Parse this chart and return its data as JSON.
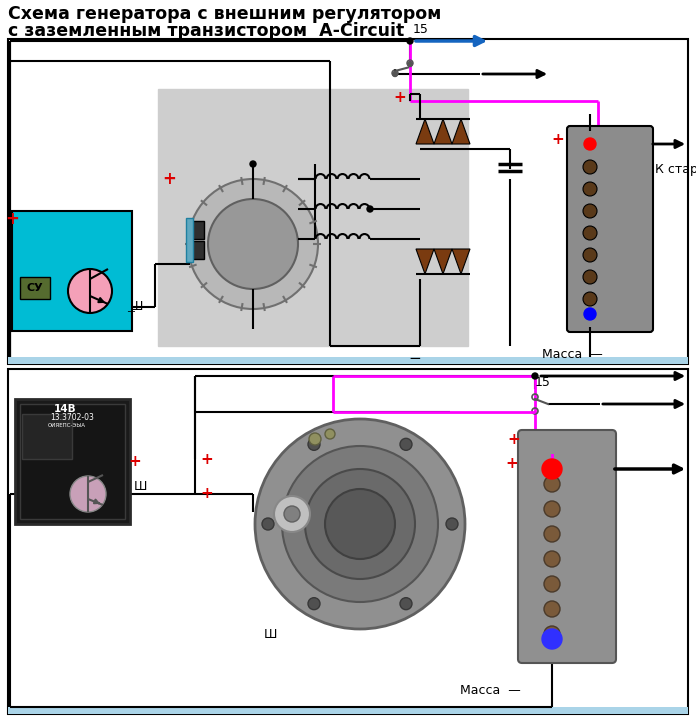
{
  "title_line1": "Схема генератора с внешним регулятором",
  "title_line2": "с заземленным транзистором  A-Circuit",
  "title_fontsize": 12.5,
  "bg_color": "#ffffff",
  "pink_wire": "#ff00ff",
  "blue_arrow_color": "#1565c0",
  "red_plus": "#dd0000",
  "diode_color": "#7a3b10",
  "label_15": "15",
  "label_massa": "Масса  —",
  "label_k_starteru": "К стартеру",
  "label_sh": "Ш",
  "label_su": "СУ",
  "ground_bar_color": "#aad4e8",
  "regulator_bg": "#00bcd4",
  "gen_box_color": "#cecece",
  "battery_color": "#909090"
}
